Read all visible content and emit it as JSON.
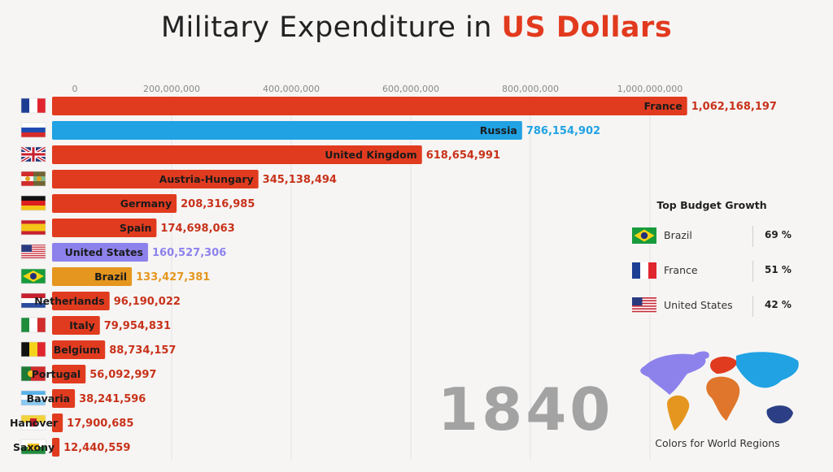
{
  "title": {
    "prefix": "Military Expenditure in ",
    "highlight": "US Dollars"
  },
  "year": "1840",
  "colors": {
    "europe": "#e13b1f",
    "russia": "#20a2e3",
    "north_america": "#8d82ec",
    "south_america": "#e5961e",
    "axis_text": "#8a8a8a",
    "grid": "#e4e4e4"
  },
  "chart_data": {
    "type": "bar",
    "orientation": "horizontal",
    "categories": [
      "France",
      "Russia",
      "United Kingdom",
      "Austria-Hungary",
      "Germany",
      "Spain",
      "United States",
      "Brazil",
      "Netherlands",
      "Italy",
      "Belgium",
      "Portugal",
      "Bavaria",
      "Hanover",
      "Saxony"
    ],
    "values": [
      1062168197,
      786154902,
      618654991,
      345138494,
      208316985,
      174698063,
      160527306,
      133427381,
      96190022,
      79954831,
      88734157,
      56092997,
      38241596,
      17900685,
      12440559
    ],
    "value_labels": [
      "1,062,168,197",
      "786,154,902",
      "618,654,991",
      "345,138,494",
      "208,316,985",
      "174,698,063",
      "160,527,306",
      "133,427,381",
      "96,190,022",
      "79,954,831",
      "88,734,157",
      "56,092,997",
      "38,241,596",
      "17,900,685",
      "12,440,559"
    ],
    "regions": [
      "europe",
      "russia",
      "europe",
      "europe",
      "europe",
      "europe",
      "north_america",
      "south_america",
      "europe",
      "europe",
      "europe",
      "europe",
      "europe",
      "europe",
      "europe"
    ],
    "flags": [
      "france-flag",
      "russia-flag",
      "uk-flag",
      "austria-hungary-flag",
      "germany-flag",
      "spain-flag",
      "usa-flag",
      "brazil-flag",
      "netherlands-flag",
      "italy-flag",
      "belgium-flag",
      "portugal-flag",
      "bavaria-flag",
      "hanover-flag",
      "saxony-flag"
    ],
    "x_ticks": [
      0,
      200000000,
      400000000,
      600000000,
      800000000,
      1000000000
    ],
    "x_tick_labels": [
      "0",
      "200,000,000",
      "400,000,000",
      "600,000,000",
      "800,000,000",
      "1,000,000,000"
    ],
    "xlim": [
      0,
      1000000000
    ],
    "grid": true,
    "axis_position": "top"
  },
  "growth": {
    "title": "Top Budget Growth",
    "items": [
      {
        "name": "Brazil",
        "value": "69 %",
        "flag": "brazil-flag"
      },
      {
        "name": "France",
        "value": "51 %",
        "flag": "france-flag"
      },
      {
        "name": "United States",
        "value": "42 %",
        "flag": "usa-flag"
      }
    ]
  },
  "map": {
    "caption": "Colors for World Regions",
    "icon": "world-map-icon"
  }
}
